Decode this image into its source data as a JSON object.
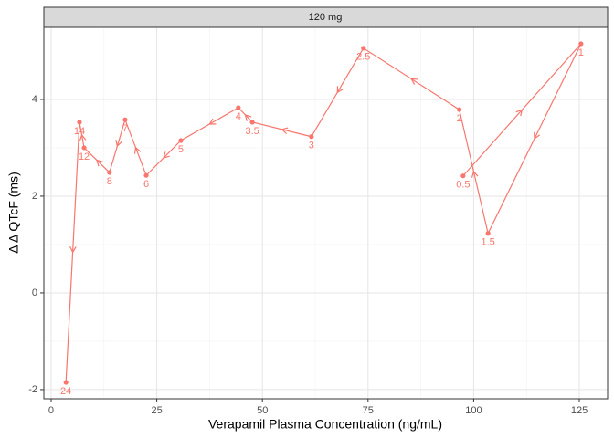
{
  "chart_data": {
    "type": "path",
    "strip": "120 mg",
    "x_label": "Verapamil Plasma Concentration (ng/mL)",
    "y_label": "Δ Δ QTcF (ms)",
    "color": "#F8766D",
    "labels": [
      "0.5",
      "1",
      "1.5",
      "2",
      "2.5",
      "3",
      "3.5",
      "4",
      "5",
      "6",
      "7",
      "8",
      "12",
      "14",
      "24"
    ],
    "x": [
      97.5,
      125.4,
      103.4,
      96.6,
      73.9,
      61.6,
      47.6,
      44.3,
      30.7,
      22.5,
      17.5,
      13.8,
      7.8,
      6.7,
      3.5
    ],
    "y": [
      2.42,
      5.15,
      1.23,
      3.79,
      5.06,
      3.23,
      3.53,
      3.83,
      3.15,
      2.43,
      3.58,
      2.49,
      3.0,
      3.53,
      -1.85
    ],
    "xlim": [
      -1.73,
      131.7
    ],
    "ylim": [
      -2.19,
      5.49
    ],
    "xticks": [
      0,
      25,
      50,
      75,
      100,
      125
    ],
    "yticks": [
      -2,
      0,
      2,
      4
    ],
    "grid": true
  }
}
